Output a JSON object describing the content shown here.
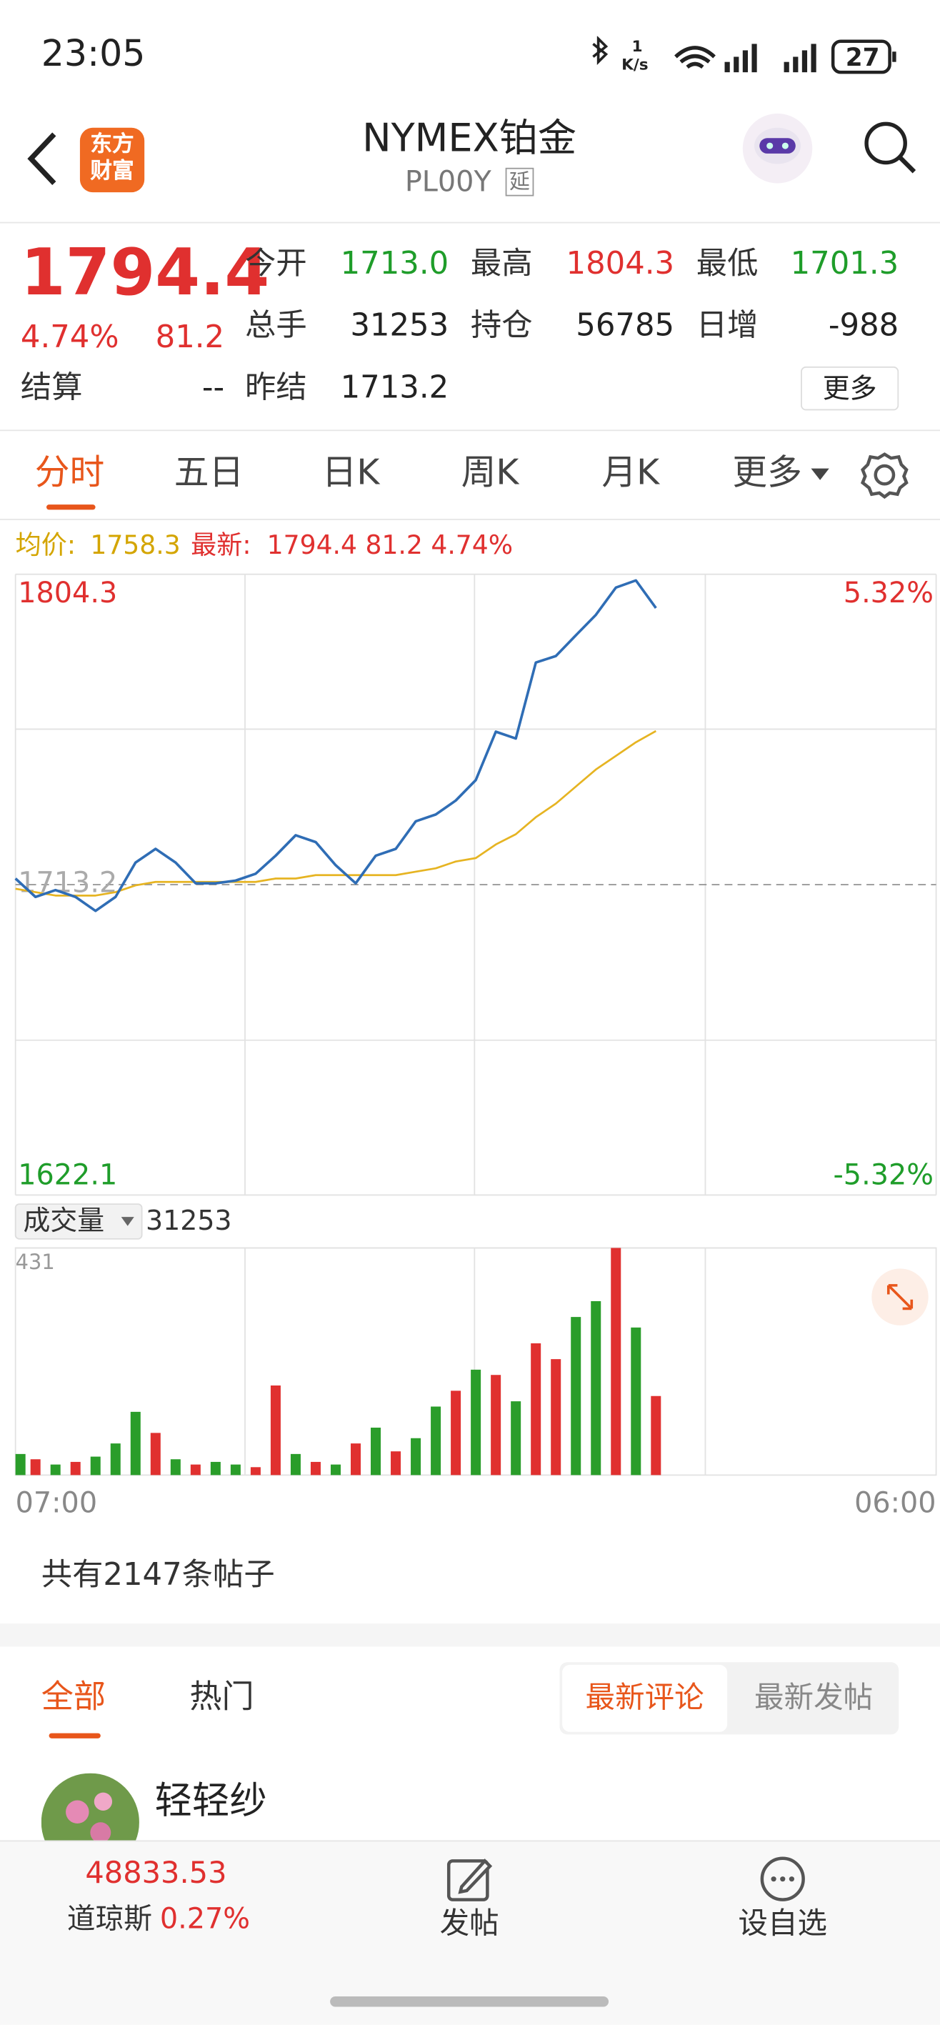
{
  "status_bar": {
    "time": "23:05",
    "net_speed": "1",
    "net_unit": "K/s",
    "battery": "27"
  },
  "header": {
    "logo": [
      "东方",
      "财富"
    ],
    "title": "NYMEX铂金",
    "code": "PL00Y",
    "tag": "延"
  },
  "quote": {
    "price": "1794.4",
    "change_pct": "4.74%",
    "change": "81.2",
    "fields": [
      {
        "label": "今开",
        "value": "1713.0"
      },
      {
        "label": "最高",
        "value": "1804.3"
      },
      {
        "label": "最低",
        "value": "1701.3"
      },
      {
        "label": "总手",
        "value": "31253"
      },
      {
        "label": "持仓",
        "value": "56785"
      },
      {
        "label": "日增",
        "value": "-988"
      },
      {
        "label": "结算",
        "value": "--"
      },
      {
        "label": "昨结",
        "value": "1713.2"
      }
    ],
    "more": "更多"
  },
  "tabs": [
    "分时",
    "五日",
    "日K",
    "周K",
    "月K",
    "更多"
  ],
  "legend": {
    "avg_label": "均价:",
    "avg": "1758.3",
    "last_label": "最新:",
    "last": "1794.4 81.2 4.74%"
  },
  "chart_data": [
    {
      "type": "line",
      "categories": [
        "07:00",
        null,
        null,
        null,
        null,
        null,
        null,
        null,
        null,
        null,
        null,
        null,
        null,
        null,
        null,
        null,
        null,
        null,
        null,
        null,
        null,
        null,
        null,
        null,
        null,
        null,
        null,
        null,
        null,
        null,
        null,
        null,
        null,
        null,
        null,
        null,
        null,
        null,
        null,
        null,
        null,
        null,
        null,
        null,
        null,
        null,
        "06:00"
      ],
      "series": [
        {
          "color": "#2f6db5",
          "values": [
            1715,
            1709.6,
            1711.6,
            1709.6,
            1705.5,
            1709.6,
            1719.7,
            1723.7,
            1719.7,
            1713.6,
            1713.6,
            1714.4,
            1716.4,
            1721.7,
            1727.7,
            1725.7,
            1718.9,
            1713.6,
            1721.7,
            1723.7,
            1731.8,
            1733.8,
            1737.9,
            1743.9,
            1758.1,
            1756.1,
            1778.4,
            1780.3,
            1786.4,
            1792.4,
            1800.4,
            1802.5,
            1794.4,
            null,
            null,
            null,
            null,
            null,
            null,
            null,
            null,
            null,
            null,
            null,
            null,
            null,
            null
          ]
        },
        {
          "color": "#e6b422",
          "values": [
            1712,
            1711,
            1710,
            1710,
            1710,
            1711,
            1713,
            1714,
            1714,
            1714,
            1714,
            1714,
            1714,
            1715,
            1715,
            1716,
            1716,
            1716,
            1716,
            1716,
            1717,
            1718,
            1720,
            1721,
            1725,
            1728,
            1733,
            1737,
            1742,
            1747,
            1751,
            1755,
            1758.3,
            null,
            null,
            null,
            null,
            null,
            null,
            null,
            null,
            null,
            null,
            null,
            null,
            null,
            null
          ]
        }
      ],
      "ylim": [
        1622.1,
        1804.3
      ],
      "yticks": [
        1622.1,
        1713.2,
        1804.3
      ],
      "y2lim": [
        -5.32,
        5.32
      ],
      "y2ticks": [
        {
          "value": -5.32,
          "label": "-5.32%"
        },
        {
          "value": 5.32,
          "label": "5.32%"
        }
      ]
    },
    {
      "type": "bar",
      "title": "成交量",
      "total": "31253",
      "values": [
        40,
        30,
        20,
        25,
        35,
        60,
        120,
        80,
        30,
        20,
        25,
        20,
        15,
        170,
        40,
        25,
        20,
        60,
        90,
        45,
        70,
        130,
        160,
        200,
        190,
        140,
        250,
        220,
        300,
        330,
        431,
        280,
        150
      ],
      "colors": [
        "#2a9d2a",
        "#e0302f",
        "#2a9d2a",
        "#e0302f",
        "#2a9d2a",
        "#2a9d2a",
        "#2a9d2a",
        "#e0302f",
        "#2a9d2a",
        "#e0302f",
        "#2a9d2a",
        "#2a9d2a",
        "#e0302f",
        "#e0302f",
        "#2a9d2a",
        "#e0302f",
        "#2a9d2a",
        "#e0302f",
        "#2a9d2a",
        "#e0302f",
        "#2a9d2a",
        "#2a9d2a",
        "#e0302f",
        "#2a9d2a",
        "#e0302f",
        "#2a9d2a",
        "#e0302f",
        "#e0302f",
        "#2a9d2a",
        "#2a9d2a",
        "#e0302f",
        "#2a9d2a",
        "#e0302f"
      ],
      "ylim": [
        0,
        431
      ],
      "yticks": [
        431
      ]
    }
  ],
  "posts": {
    "count_text": "共有2147条帖子",
    "tabs": [
      "全部",
      "热门"
    ],
    "sort": [
      "最新评论",
      "最新发帖"
    ],
    "first_user": "轻轻纱"
  },
  "bottom_bar": {
    "index_value": "48833.53",
    "index_name": "道琼斯",
    "index_change": "0.27%",
    "actions": [
      "发帖",
      "设自选"
    ]
  }
}
